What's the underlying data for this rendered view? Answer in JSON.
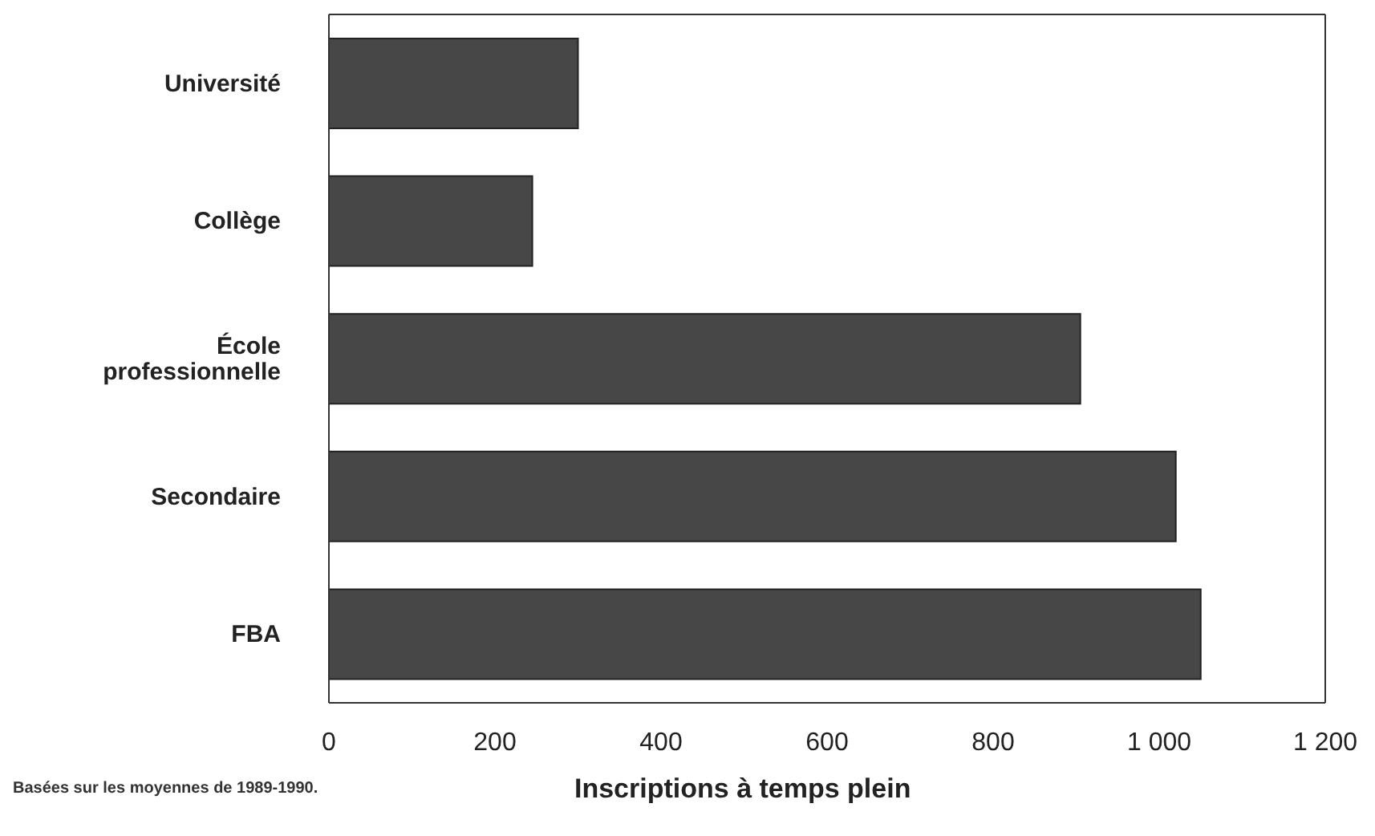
{
  "chart_data": {
    "type": "bar",
    "orientation": "horizontal",
    "categories": [
      "Université",
      "Collège",
      "École\nprofessionnelle",
      "Secondaire",
      "FBA"
    ],
    "values": [
      300,
      245,
      905,
      1020,
      1050
    ],
    "color": "#474747",
    "xlim": [
      0,
      1200
    ],
    "xticks": [
      0,
      200,
      400,
      600,
      800,
      {
        "value": 1000,
        "label": "1 000"
      },
      {
        "value": 1200,
        "label": "1 200"
      }
    ],
    "xlabel": "Inscriptions à temps plein",
    "annotations": [
      "Basées sur les moyennes de 1989-1990."
    ]
  }
}
